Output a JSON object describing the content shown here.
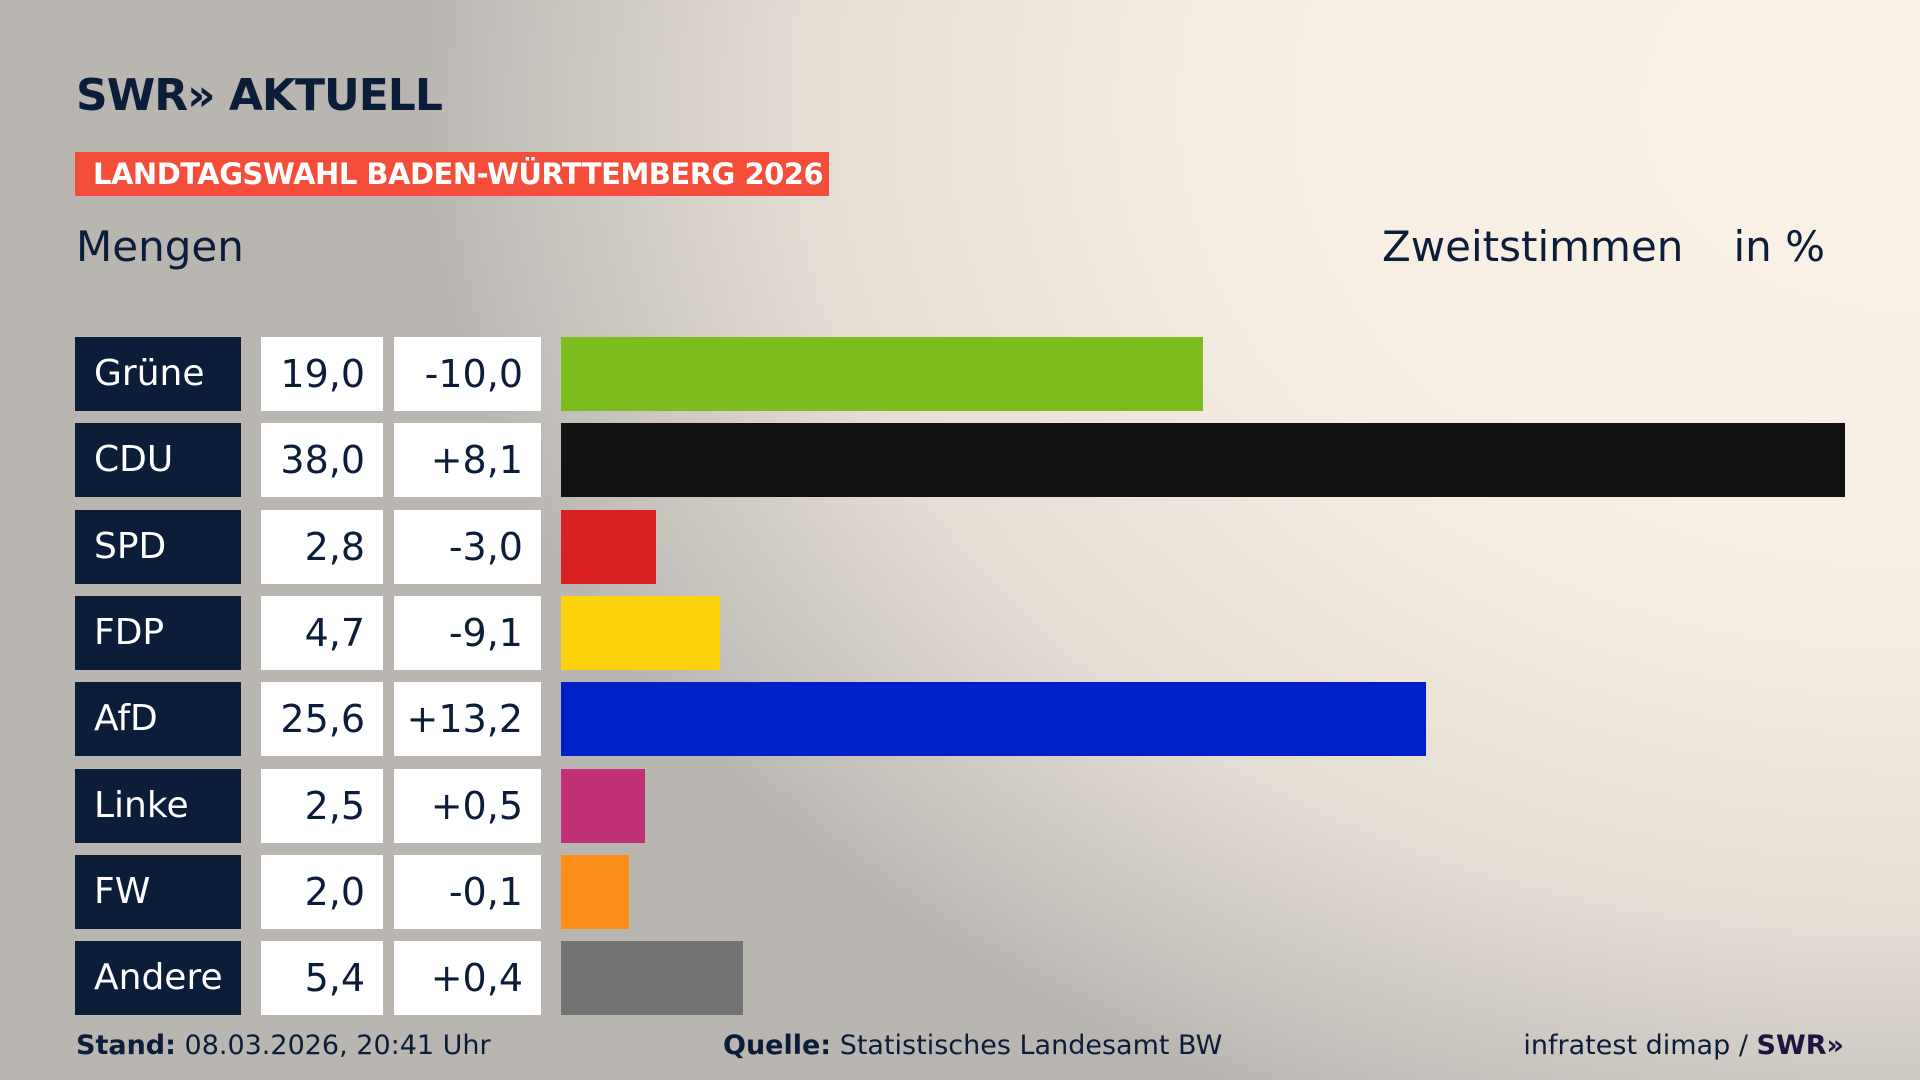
{
  "header": {
    "logo": "SWR» AKTUELL",
    "banner": "LANDTAGSWAHL BADEN-WÜRTTEMBERG 2026",
    "subtitle": "Mengen",
    "measure": "Zweitstimmen",
    "unit": "in %"
  },
  "chart_data": {
    "type": "bar",
    "orientation": "horizontal",
    "categories": [
      "Grüne",
      "CDU",
      "SPD",
      "FDP",
      "AfD",
      "Linke",
      "FW",
      "Andere"
    ],
    "values": [
      19.0,
      38.0,
      2.8,
      4.7,
      25.6,
      2.5,
      2.0,
      5.4
    ],
    "value_labels": [
      "19,0",
      "38,0",
      "2,8",
      "4,7",
      "25,6",
      "2,5",
      "2,0",
      "5,4"
    ],
    "diff_labels": [
      "-10,0",
      "+8,1",
      "-3,0",
      "-9,1",
      "+13,2",
      "+0,5",
      "-0,1",
      "+0,4"
    ],
    "colors": [
      "#7bbd1f",
      "#121212",
      "#d92121",
      "#fdd10c",
      "#0021c8",
      "#bf3077",
      "#fd8e1a",
      "#727272"
    ],
    "xlim": [
      0,
      38
    ],
    "grid": false
  },
  "footer": {
    "stand_label": "Stand:",
    "stand_value": "08.03.2026, 20:41 Uhr",
    "source_label": "Quelle:",
    "source_value": "Statistisches Landesamt BW",
    "credit": "infratest dimap /",
    "credit_logo": "SWR»"
  }
}
